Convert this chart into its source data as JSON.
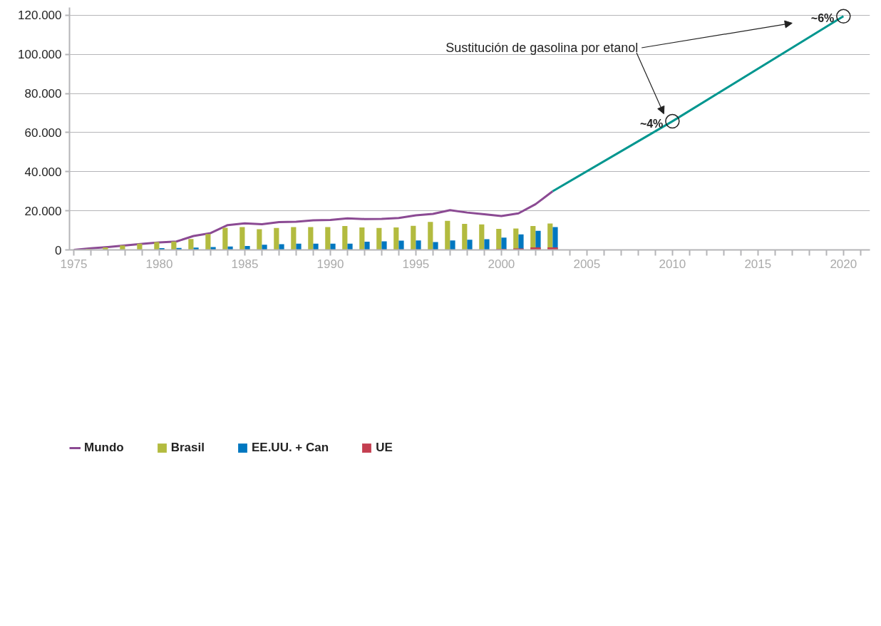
{
  "chart_data": {
    "type": "bar",
    "x": [
      1976,
      1977,
      1978,
      1979,
      1980,
      1981,
      1982,
      1983,
      1984,
      1985,
      1986,
      1987,
      1988,
      1989,
      1990,
      1991,
      1992,
      1993,
      1994,
      1995,
      1996,
      1997,
      1998,
      1999,
      2000,
      2001,
      2002,
      2003
    ],
    "series": [
      {
        "name": "Brasil",
        "color": "#b3bb3f",
        "values": [
          500,
          1300,
          2300,
          3200,
          4000,
          4300,
          5600,
          8100,
          11300,
          11700,
          10600,
          11200,
          11700,
          11700,
          11700,
          12200,
          11500,
          11200,
          11500,
          12300,
          14300,
          14900,
          13300,
          13000,
          10800,
          10900,
          12200,
          13500
        ]
      },
      {
        "name": "EE.UU. + Can",
        "color": "#0077c0",
        "values": [
          null,
          null,
          null,
          null,
          900,
          1000,
          1200,
          1500,
          1700,
          2000,
          2600,
          2900,
          3200,
          3200,
          3200,
          3200,
          4200,
          4400,
          4700,
          4800,
          4000,
          4800,
          5200,
          5500,
          6300,
          7900,
          9800,
          11700
        ]
      },
      {
        "name": "UE",
        "color": "#c43e50",
        "values": [
          null,
          null,
          null,
          null,
          null,
          null,
          null,
          null,
          null,
          null,
          null,
          null,
          null,
          null,
          null,
          null,
          null,
          null,
          null,
          null,
          null,
          null,
          null,
          null,
          500,
          700,
          1300,
          1300
        ]
      },
      {
        "name": "Mundo",
        "type": "line",
        "color": "#8b4a93",
        "x": [
          1975,
          1976,
          1977,
          1978,
          1979,
          1980,
          1981,
          1982,
          1983,
          1984,
          1985,
          1986,
          1987,
          1988,
          1989,
          1990,
          1991,
          1992,
          1993,
          1994,
          1995,
          1996,
          1997,
          1998,
          1999,
          2000,
          2001,
          2002,
          2003
        ],
        "values": [
          0,
          800,
          1500,
          2300,
          3100,
          3800,
          4300,
          7100,
          8600,
          12700,
          13600,
          13100,
          14200,
          14400,
          15100,
          15300,
          16100,
          15800,
          15900,
          16300,
          17700,
          18400,
          20300,
          19100,
          18200,
          17300,
          18700,
          23400,
          30000
        ]
      },
      {
        "type": "line",
        "color": "#00968f",
        "x": [
          2003,
          2010,
          2020
        ],
        "values": [
          30000,
          65800,
          119500
        ]
      }
    ],
    "xlim": [
      1974.75,
      2021.55
    ],
    "xticks": [
      1975,
      {
        "value": 1976,
        "label": null
      },
      {
        "value": 1977,
        "label": null
      },
      {
        "value": 1978,
        "label": null
      },
      {
        "value": 1979,
        "label": null
      },
      1980,
      {
        "value": 1981,
        "label": null
      },
      {
        "value": 1982,
        "label": null
      },
      {
        "value": 1983,
        "label": null
      },
      {
        "value": 1984,
        "label": null
      },
      1985,
      {
        "value": 1986,
        "label": null
      },
      {
        "value": 1987,
        "label": null
      },
      {
        "value": 1988,
        "label": null
      },
      {
        "value": 1989,
        "label": null
      },
      1990,
      {
        "value": 1991,
        "label": null
      },
      {
        "value": 1992,
        "label": null
      },
      {
        "value": 1993,
        "label": null
      },
      {
        "value": 1994,
        "label": null
      },
      1995,
      {
        "value": 1996,
        "label": null
      },
      {
        "value": 1997,
        "label": null
      },
      {
        "value": 1998,
        "label": null
      },
      {
        "value": 1999,
        "label": null
      },
      2000,
      {
        "value": 2001,
        "label": null
      },
      {
        "value": 2002,
        "label": null
      },
      {
        "value": 2003,
        "label": null
      },
      {
        "value": 2004,
        "label": null
      },
      2005,
      {
        "value": 2006,
        "label": null
      },
      {
        "value": 2007,
        "label": null
      },
      {
        "value": 2008,
        "label": null
      },
      {
        "value": 2009,
        "label": null
      },
      2010,
      {
        "value": 2011,
        "label": null
      },
      {
        "value": 2012,
        "label": null
      },
      {
        "value": 2013,
        "label": null
      },
      {
        "value": 2014,
        "label": null
      },
      2015,
      {
        "value": 2016,
        "label": null
      },
      {
        "value": 2017,
        "label": null
      },
      {
        "value": 2018,
        "label": null
      },
      {
        "value": 2019,
        "label": null
      },
      2020,
      {
        "value": 2021,
        "label": null
      }
    ],
    "ylim": [
      0,
      124000
    ],
    "yticks": [
      0,
      {
        "value": 20000,
        "label": "20.000"
      },
      {
        "value": 40000,
        "label": "40.000"
      },
      {
        "value": 60000,
        "label": "60.000"
      },
      {
        "value": 80000,
        "label": "80.000"
      },
      {
        "value": 100000,
        "label": "100.000"
      },
      {
        "value": 120000,
        "label": "120.000"
      }
    ],
    "grid": "y",
    "legend": "bottom left",
    "annotations": [
      "Sustitución de gasolina por etanol",
      {
        "text": "~4%",
        "x": 2010,
        "y": 65800
      },
      {
        "text": "~6%",
        "x": 2020,
        "y": 119500
      }
    ]
  }
}
